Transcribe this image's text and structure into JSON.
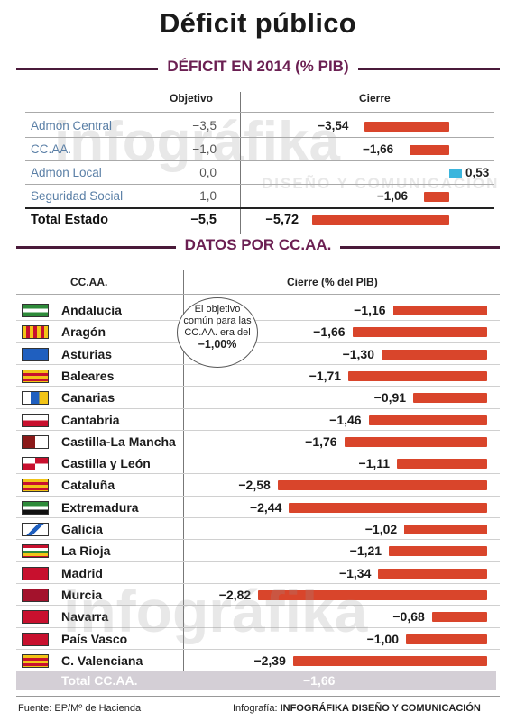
{
  "title": "Déficit público",
  "section1": {
    "heading": "DÉFICIT EN 2014 (% PIB)",
    "col_objetivo": "Objetivo",
    "col_cierre": "Cierre"
  },
  "section2": {
    "heading": "DATOS POR CC.AA.",
    "col_ccaa": "CC.AA.",
    "col_cierre": "Cierre (% del PIB)"
  },
  "callout": {
    "line1": "El objetivo",
    "line2": "común para las",
    "line3": "CC.AA. era del",
    "line4": "−1,00%"
  },
  "colors": {
    "bar_negative": "#d9452b",
    "bar_positive": "#3bb5dd",
    "accent": "#6b1f52"
  },
  "chart_data": [
    {
      "type": "bar",
      "title": "DÉFICIT EN 2014 (% PIB)",
      "categories": [
        "Admon Central",
        "CC.AA.",
        "Admon Local",
        "Seguridad Social",
        "Total Estado"
      ],
      "series": [
        {
          "name": "Objetivo",
          "values": [
            -3.5,
            -1.0,
            0.0,
            -1.0,
            -5.5
          ],
          "labels": [
            "−3,5",
            "−1,0",
            "0,0",
            "−1,0",
            "−5,5"
          ]
        },
        {
          "name": "Cierre",
          "values": [
            -3.54,
            -1.66,
            0.53,
            -1.06,
            -5.72
          ],
          "labels": [
            "−3,54",
            "−1,66",
            "0,53",
            "−1,06",
            "−5,72"
          ]
        }
      ]
    },
    {
      "type": "bar",
      "title": "DATOS POR CC.AA.",
      "categories": [
        "Andalucía",
        "Aragón",
        "Asturias",
        "Baleares",
        "Canarias",
        "Cantabria",
        "Castilla-La Mancha",
        "Castilla y León",
        "Cataluña",
        "Extremadura",
        "Galicia",
        "La Rioja",
        "Madrid",
        "Murcia",
        "Navarra",
        "País Vasco",
        "C. Valenciana"
      ],
      "series": [
        {
          "name": "Cierre (% del PIB)",
          "values": [
            -1.16,
            -1.66,
            -1.3,
            -1.71,
            -0.91,
            -1.46,
            -1.76,
            -1.11,
            -2.58,
            -2.44,
            -1.02,
            -1.21,
            -1.34,
            -2.82,
            -0.68,
            -1.0,
            -2.39
          ],
          "labels": [
            "−1,16",
            "−1,66",
            "−1,30",
            "−1,71",
            "−0,91",
            "−1,46",
            "−1,76",
            "−1,11",
            "−2,58",
            "−2,44",
            "−1,02",
            "−1,21",
            "−1,34",
            "−2,82",
            "−0,68",
            "−1,00",
            "−2,39"
          ]
        }
      ],
      "total": {
        "name": "Total CC.AA.",
        "value": -1.66,
        "label": "−1,66"
      }
    }
  ],
  "footer": {
    "source": "Fuente: EP/Mº de Hacienda",
    "credit_prefix": "Infografía:",
    "credit_name": "INFOGRÁFIKA DISEÑO Y COMUNICACIÓN"
  },
  "watermark": {
    "brand": "infográfika",
    "tagline": "DISEÑO Y COMUNICACIÓN"
  }
}
